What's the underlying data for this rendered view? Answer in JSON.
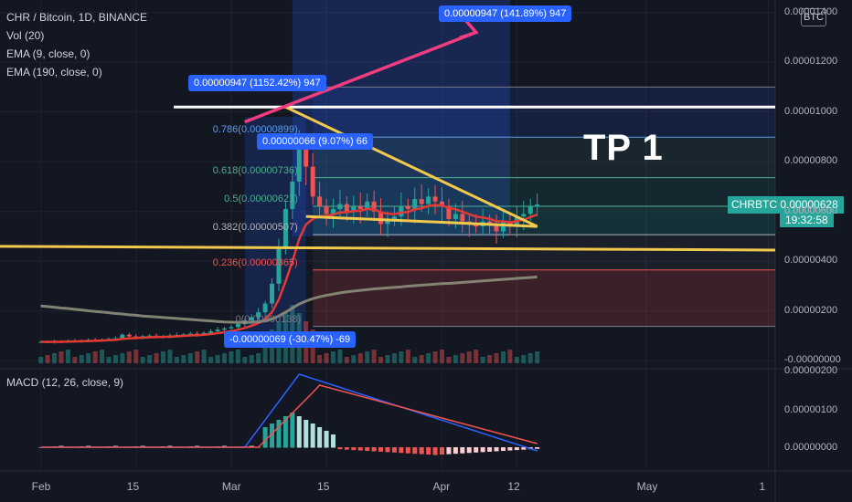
{
  "header": {
    "symbol_line": "CHR / Bitcoin, 1D, BINANCE",
    "vol": "Vol (20)",
    "ema9": "EMA (9, close, 0)",
    "ema190": "EMA (190, close, 0)"
  },
  "macd_label": "MACD (12, 26, close, 9)",
  "badge": "BTC",
  "annotations": {
    "tp_label": "TP 1",
    "target_tag": "0.00000947 (141.89%) 947",
    "rise_tag": "0.00000947 (1152.42%) 947",
    "mid_tag": "0.00000066 (9.07%) 66",
    "drop_tag": "-0.00000069 (-30.47%) -69"
  },
  "fib_levels": [
    {
      "label": "0.786(0.00000899)",
      "value": 8.99e-06,
      "color": "#5c9ded"
    },
    {
      "label": "0.618(0.00000736)",
      "value": 7.36e-06,
      "color": "#4caf93"
    },
    {
      "label": "0.5(0.00000621)",
      "value": 6.21e-06,
      "color": "#4caf93"
    },
    {
      "label": "0.382(0.00000507)",
      "value": 5.07e-06,
      "color": "#b2b5be"
    },
    {
      "label": "0.236(0.00000365)",
      "value": 3.65e-06,
      "color": "#ef5350"
    },
    {
      "label": "0(0.00000138)",
      "value": 1.38e-06,
      "color": "#787b86"
    }
  ],
  "last_price": {
    "symbol": "CHRBTC",
    "price": "0.00000628",
    "countdown": "19:32:58"
  },
  "chart_data": {
    "type": "candlestick",
    "title": "CHR / Bitcoin, 1D, BINANCE",
    "y_ticks": [
      "0.00001400",
      "0.00001200",
      "0.00001000",
      "0.00000800",
      "0.00000600",
      "0.00000400",
      "0.00000200",
      "-0.00000000"
    ],
    "y_tick_values": [
      1.4e-05,
      1.2e-05,
      1e-05,
      8e-06,
      6e-06,
      4e-06,
      2e-06,
      0
    ],
    "ylim": [
      -1e-07,
      1.45e-05
    ],
    "macd_ticks": [
      "0.00000200",
      "0.00000100",
      "0.00000000"
    ],
    "x_ticks": [
      "Feb",
      "15",
      "Mar",
      "15",
      "Apr",
      "12",
      "May",
      "1"
    ],
    "x_tick_days": [
      0,
      14,
      28,
      42,
      59,
      70,
      89,
      107
    ],
    "x_range": [
      -6,
      108
    ],
    "closes": [
      7.6e-07,
      7.5e-07,
      7.8e-07,
      7.7e-07,
      8e-07,
      7.9e-07,
      8.2e-07,
      8.4e-07,
      8.3e-07,
      8.5e-07,
      8.8e-07,
      9e-07,
      1.05e-06,
      9.8e-07,
      9.6e-07,
      9.9e-07,
      1.01e-06,
      9.7e-07,
      9.9e-07,
      1.02e-06,
      1.04e-06,
      1.06e-06,
      1.09e-06,
      1.07e-06,
      1.12e-06,
      1.18e-06,
      1.25e-06,
      1.3e-06,
      1.35e-06,
      1.48e-06,
      1.62e-06,
      1.75e-06,
      1.95e-06,
      2.3e-06,
      3.1e-06,
      4.5e-06,
      6.1e-06,
      7.2e-06,
      8.5e-06,
      7.8e-06,
      6.6e-06,
      6.2e-06,
      5.9e-06,
      6.1e-06,
      6.3e-06,
      6e-06,
      6.2e-06,
      6.1e-06,
      6.4e-06,
      6e-06,
      5.5e-06,
      5.7e-06,
      5.8e-06,
      6.2e-06,
      6.1e-06,
      6.5e-06,
      6.3e-06,
      6.6e-06,
      6.4e-06,
      6.2e-06,
      5.7e-06,
      5.9e-06,
      5.6e-06,
      5.5e-06,
      5.4e-06,
      5.6e-06,
      5.5e-06,
      5.2e-06,
      5.6e-06,
      5.4e-06,
      5.8e-06,
      5.9e-06,
      6.2e-06,
      6.28e-06
    ],
    "ema190": [
      2.2e-06,
      2.18e-06,
      2.15e-06,
      2.12e-06,
      2.1e-06,
      2.07e-06,
      2.04e-06,
      2.01e-06,
      1.98e-06,
      1.96e-06,
      1.93e-06,
      1.9e-06,
      1.88e-06,
      1.85e-06,
      1.83e-06,
      1.8e-06,
      1.78e-06,
      1.76e-06,
      1.74e-06,
      1.72e-06,
      1.7e-06,
      1.68e-06,
      1.66e-06,
      1.64e-06,
      1.62e-06,
      1.6e-06,
      1.58e-06,
      1.56e-06,
      1.55e-06,
      1.54e-06,
      1.54e-06,
      1.55e-06,
      1.57e-06,
      1.6e-06,
      1.68e-06,
      1.8e-06,
      1.95e-06,
      2.12e-06,
      2.28e-06,
      2.4e-06,
      2.5e-06,
      2.57e-06,
      2.63e-06,
      2.68e-06,
      2.73e-06,
      2.77e-06,
      2.8e-06,
      2.83e-06,
      2.86e-06,
      2.89e-06,
      2.91e-06,
      2.93e-06,
      2.95e-06,
      2.97e-06,
      3e-06,
      3.02e-06,
      3.04e-06,
      3.06e-06,
      3.08e-06,
      3.1e-06,
      3.11e-06,
      3.13e-06,
      3.15e-06,
      3.17e-06,
      3.19e-06,
      3.21e-06,
      3.23e-06,
      3.25e-06,
      3.27e-06,
      3.29e-06,
      3.31e-06,
      3.33e-06,
      3.35e-06,
      3.37e-06
    ]
  }
}
